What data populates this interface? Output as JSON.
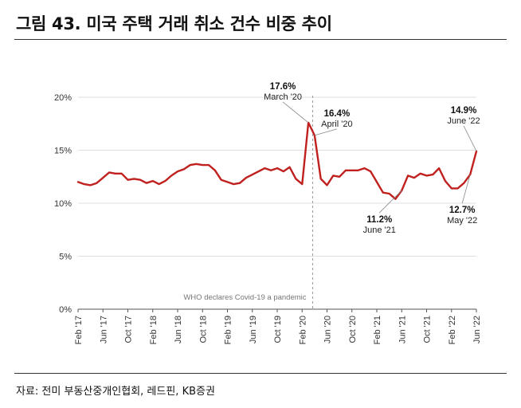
{
  "title": "그림 43. 미국 주택 거래 취소 건수 비중 추이",
  "source": "자료: 전미 부동산중개인협회, 레드핀, KB증권",
  "chart_data": {
    "type": "line",
    "title": "그림 43. 미국 주택 거래 취소 건수 비중 추이",
    "xlabel": "",
    "ylabel": "",
    "ylim": [
      0,
      20
    ],
    "yticks": [
      0,
      5,
      10,
      15,
      20
    ],
    "ytick_labels": [
      "0%",
      "5%",
      "10%",
      "15%",
      "20%"
    ],
    "grid": true,
    "line_color": "#c0201e",
    "x_start": "Feb '17",
    "x_end": "Jun '22",
    "xtick_labels": [
      "Feb '17",
      "Jun '17",
      "Oct '17",
      "Feb '18",
      "Jun '18",
      "Oct '18",
      "Feb '19",
      "Jun '19",
      "Oct '19",
      "Feb '20",
      "Jun '20",
      "Oct '20",
      "Feb '21",
      "Jun '21",
      "Oct '21",
      "Feb '22",
      "Jun '22"
    ],
    "xtick_index": [
      0,
      4,
      8,
      12,
      16,
      20,
      24,
      28,
      32,
      36,
      40,
      44,
      48,
      52,
      56,
      60,
      64
    ],
    "series": [
      {
        "name": "",
        "x": [
          0,
          1,
          2,
          3,
          4,
          5,
          6,
          7,
          8,
          9,
          10,
          11,
          12,
          13,
          14,
          15,
          16,
          17,
          18,
          19,
          20,
          21,
          22,
          23,
          24,
          25,
          26,
          27,
          28,
          29,
          30,
          31,
          32,
          33,
          34,
          35,
          36,
          37,
          38,
          39,
          40,
          41,
          42,
          43,
          44,
          45,
          46,
          47,
          48,
          49,
          50,
          51,
          52,
          53,
          54,
          55,
          56,
          57,
          58,
          59,
          60,
          61,
          62,
          63,
          64
        ],
        "values": [
          12.0,
          11.8,
          11.7,
          11.9,
          12.4,
          12.9,
          12.8,
          12.8,
          12.2,
          12.3,
          12.2,
          11.9,
          12.1,
          11.8,
          12.1,
          12.6,
          13.0,
          13.2,
          13.6,
          13.7,
          13.6,
          13.6,
          13.1,
          12.2,
          12.0,
          11.8,
          11.9,
          12.4,
          12.7,
          13.0,
          13.3,
          13.1,
          13.3,
          13.0,
          13.4,
          12.3,
          11.8,
          17.6,
          16.4,
          12.3,
          11.7,
          12.6,
          12.5,
          13.1,
          13.1,
          13.1,
          13.3,
          13.0,
          12.0,
          11.0,
          10.9,
          10.4,
          11.2,
          12.6,
          12.4,
          12.8,
          12.6,
          12.7,
          13.3,
          12.1,
          11.4,
          11.4,
          11.9,
          12.7,
          14.9
        ]
      }
    ],
    "annotations": [
      {
        "index": 37,
        "value_label": "17.6%",
        "date_label": "March '20"
      },
      {
        "index": 38,
        "value_label": "16.4%",
        "date_label": "April '20"
      },
      {
        "index": 52,
        "value_label": "11.2%",
        "date_label": "June '21"
      },
      {
        "index": 63,
        "value_label": "12.7%",
        "date_label": "May '22"
      },
      {
        "index": 64,
        "value_label": "14.9%",
        "date_label": "June '22"
      }
    ],
    "event_line": {
      "index": 37.7,
      "label": "WHO declares Covid-19 a pandemic"
    }
  }
}
